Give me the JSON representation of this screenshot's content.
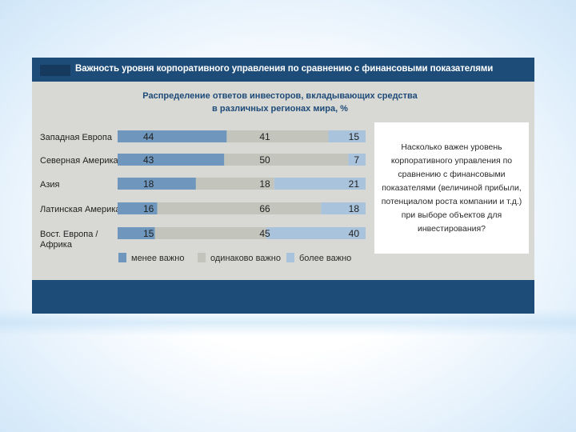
{
  "slide": {
    "title": "Важность уровня корпоративного управления по сравнению с финансовыми показателями",
    "subtitle_line1": "Распределение ответов инвесторов, вкладывающих средства",
    "subtitle_line2": "в различных регионах мира, %",
    "question": "Насколько важен уровень корпоративного управления по сравнению с финансовыми показателями (величиной прибыли, потенциалом роста компании и т.д.) при выборе объектов для инвестирования?"
  },
  "colors": {
    "title_bar": "#1e4c79",
    "less_important": "#6f97bd",
    "equally_important": "#c3c5bd",
    "more_important": "#a9c3dc"
  },
  "chart_data": {
    "type": "bar",
    "stacked": true,
    "orientation": "horizontal",
    "categories": [
      "Западная Европа",
      "Северная Америка",
      "Азия",
      "Латинская Америка",
      "Вост. Европа / Африка"
    ],
    "series": [
      {
        "name": "менее важно",
        "values": [
          44,
          43,
          18,
          16,
          15
        ]
      },
      {
        "name": "одинаково важно",
        "values": [
          41,
          50,
          18,
          66,
          45
        ]
      },
      {
        "name": "более важно",
        "values": [
          15,
          7,
          21,
          18,
          40
        ]
      }
    ],
    "title": "Важность уровня корпоративного управления по сравнению с финансовыми показателями",
    "legend_position": "bottom"
  }
}
